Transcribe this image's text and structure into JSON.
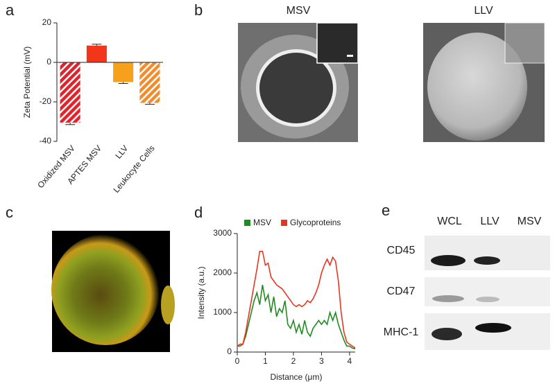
{
  "chart_data": [
    {
      "type": "bar",
      "ylabel": "Zeta Potential (mV)",
      "categories": [
        "Oxidized MSV",
        "APTES MSV",
        "LLV",
        "Leukocyte Cells"
      ],
      "values": [
        -30.5,
        8.5,
        -10,
        -20.5
      ],
      "errors": [
        1,
        0.7,
        0.7,
        0.7
      ],
      "colors": [
        "#e3232b",
        "#f2361b",
        "#f6a01c",
        "#f28d2b"
      ],
      "hatched": [
        true,
        false,
        false,
        true
      ],
      "ylim": [
        -40,
        20
      ],
      "yticks": [
        -40,
        -20,
        0,
        20
      ]
    },
    {
      "type": "line",
      "xlabel": "Distance (μm)",
      "ylabel": "Intensity (a.u.)",
      "x": [
        0,
        0.1,
        0.2,
        0.3,
        0.4,
        0.5,
        0.6,
        0.7,
        0.8,
        0.9,
        1.0,
        1.1,
        1.2,
        1.3,
        1.4,
        1.5,
        1.6,
        1.7,
        1.8,
        1.9,
        2.0,
        2.1,
        2.2,
        2.3,
        2.4,
        2.5,
        2.6,
        2.7,
        2.8,
        2.9,
        3.0,
        3.1,
        3.2,
        3.3,
        3.4,
        3.5,
        3.6,
        3.7,
        3.8,
        3.9,
        4.0,
        4.1,
        4.2
      ],
      "series": [
        {
          "name": "MSV",
          "color": "#1e8c1e",
          "values": [
            150,
            150,
            200,
            400,
            700,
            1000,
            1300,
            1500,
            1200,
            1700,
            1300,
            1450,
            1000,
            1400,
            900,
            1100,
            1000,
            1300,
            700,
            600,
            800,
            500,
            700,
            450,
            800,
            500,
            400,
            600,
            700,
            800,
            700,
            800,
            700,
            1000,
            800,
            1000,
            700,
            500,
            300,
            150,
            150,
            100,
            80
          ]
        },
        {
          "name": "Glycoproteins",
          "color": "#e8361e",
          "values": [
            150,
            200,
            200,
            500,
            900,
            1300,
            1700,
            2100,
            2550,
            2550,
            2200,
            2250,
            1900,
            1800,
            1700,
            1650,
            1600,
            1500,
            1400,
            1300,
            1200,
            1150,
            1200,
            1150,
            1200,
            1300,
            1250,
            1350,
            1500,
            1700,
            2000,
            2200,
            2350,
            2200,
            2400,
            2300,
            1800,
            1000,
            500,
            250,
            200,
            150,
            100
          ]
        }
      ],
      "xlim": [
        0,
        4.2
      ],
      "ylim": [
        0,
        3000
      ],
      "xticks": [
        0,
        1,
        2,
        3,
        4
      ],
      "yticks": [
        0,
        1000,
        2000,
        3000
      ],
      "legend": "top"
    }
  ],
  "panel_labels": [
    "a",
    "b",
    "c",
    "d",
    "e"
  ],
  "sem_images": {
    "titles": [
      "MSV",
      "LLV"
    ]
  },
  "western_blot": {
    "columns": [
      "WCL",
      "LLV",
      "MSV"
    ],
    "rows": [
      "CD45",
      "CD47",
      "MHC-1"
    ]
  }
}
